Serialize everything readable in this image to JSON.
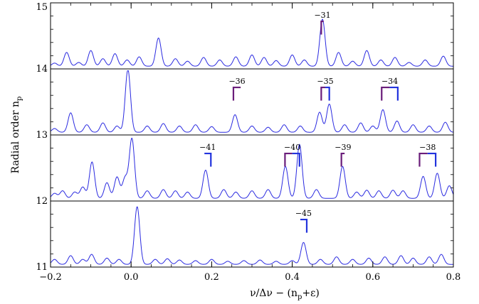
{
  "chart_data": {
    "type": "line",
    "xlabel": "ν/Δν − (n",
    "xlabel_sub": "p",
    "xlabel_tail": "+ε)",
    "ylabel": "Radial order n",
    "ylabel_sub": "p",
    "xlim": [
      -0.2,
      0.8
    ],
    "x_ticks": [
      -0.2,
      0.0,
      0.2,
      0.4,
      0.6,
      0.8
    ],
    "x_tick_labels": [
      "−0.2",
      "0.0",
      "0.2",
      "0.4",
      "0.6",
      "0.8"
    ],
    "line_color": "#2a2ae0",
    "colors": {
      "purple": "#6a1d7a",
      "blue": "#2233dd"
    },
    "panels": [
      {
        "order": 14,
        "label_bottom": "14",
        "label_top": "15",
        "peaks": [
          {
            "x": -0.19,
            "h": 0.05
          },
          {
            "x": -0.16,
            "h": 0.22
          },
          {
            "x": -0.13,
            "h": 0.06
          },
          {
            "x": -0.1,
            "h": 0.25
          },
          {
            "x": -0.07,
            "h": 0.12
          },
          {
            "x": -0.04,
            "h": 0.2
          },
          {
            "x": -0.01,
            "h": 0.1
          },
          {
            "x": 0.02,
            "h": 0.15
          },
          {
            "x": 0.068,
            "h": 0.45
          },
          {
            "x": 0.11,
            "h": 0.12
          },
          {
            "x": 0.14,
            "h": 0.08
          },
          {
            "x": 0.18,
            "h": 0.14
          },
          {
            "x": 0.22,
            "h": 0.1
          },
          {
            "x": 0.26,
            "h": 0.15
          },
          {
            "x": 0.3,
            "h": 0.18
          },
          {
            "x": 0.33,
            "h": 0.14
          },
          {
            "x": 0.36,
            "h": 0.09
          },
          {
            "x": 0.4,
            "h": 0.18
          },
          {
            "x": 0.43,
            "h": 0.1
          },
          {
            "x": 0.475,
            "h": 0.75
          },
          {
            "x": 0.515,
            "h": 0.22
          },
          {
            "x": 0.55,
            "h": 0.08
          },
          {
            "x": 0.585,
            "h": 0.25
          },
          {
            "x": 0.62,
            "h": 0.1
          },
          {
            "x": 0.655,
            "h": 0.14
          },
          {
            "x": 0.69,
            "h": 0.06
          },
          {
            "x": 0.73,
            "h": 0.1
          },
          {
            "x": 0.775,
            "h": 0.16
          }
        ],
        "markers": [
          {
            "label": "−31",
            "x1": 0.472,
            "x2": 0.478,
            "color": "purple",
            "height": 0.2
          }
        ]
      },
      {
        "order": 13,
        "label_bottom": "13",
        "peaks": [
          {
            "x": -0.19,
            "h": 0.06
          },
          {
            "x": -0.15,
            "h": 0.31
          },
          {
            "x": -0.11,
            "h": 0.12
          },
          {
            "x": -0.07,
            "h": 0.15
          },
          {
            "x": -0.035,
            "h": 0.1
          },
          {
            "x": -0.008,
            "h": 1.0
          },
          {
            "x": 0.04,
            "h": 0.1
          },
          {
            "x": 0.08,
            "h": 0.14
          },
          {
            "x": 0.12,
            "h": 0.1
          },
          {
            "x": 0.16,
            "h": 0.12
          },
          {
            "x": 0.2,
            "h": 0.09
          },
          {
            "x": 0.258,
            "h": 0.28
          },
          {
            "x": 0.3,
            "h": 0.1
          },
          {
            "x": 0.34,
            "h": 0.08
          },
          {
            "x": 0.38,
            "h": 0.12
          },
          {
            "x": 0.42,
            "h": 0.1
          },
          {
            "x": 0.468,
            "h": 0.32
          },
          {
            "x": 0.492,
            "h": 0.45
          },
          {
            "x": 0.53,
            "h": 0.12
          },
          {
            "x": 0.57,
            "h": 0.15
          },
          {
            "x": 0.6,
            "h": 0.1
          },
          {
            "x": 0.625,
            "h": 0.36
          },
          {
            "x": 0.66,
            "h": 0.18
          },
          {
            "x": 0.7,
            "h": 0.12
          },
          {
            "x": 0.74,
            "h": 0.1
          },
          {
            "x": 0.78,
            "h": 0.16
          }
        ],
        "markers": [
          {
            "label": "−36",
            "x1": 0.254,
            "x2": 0.272,
            "color": "purple",
            "height": 0.2
          },
          {
            "label": "−35",
            "x1": 0.472,
            "x2": 0.492,
            "color": "mixed",
            "height": 0.2
          },
          {
            "label": "−34",
            "x1": 0.622,
            "x2": 0.662,
            "color": "mixed",
            "height": 0.2
          }
        ]
      },
      {
        "order": 12,
        "label_bottom": "12",
        "peaks": [
          {
            "x": -0.19,
            "h": 0.08
          },
          {
            "x": -0.17,
            "h": 0.12
          },
          {
            "x": -0.14,
            "h": 0.1
          },
          {
            "x": -0.12,
            "h": 0.18
          },
          {
            "x": -0.097,
            "h": 0.58
          },
          {
            "x": -0.06,
            "h": 0.25
          },
          {
            "x": -0.035,
            "h": 0.34
          },
          {
            "x": -0.015,
            "h": 0.32
          },
          {
            "x": 0.002,
            "h": 0.95
          },
          {
            "x": 0.04,
            "h": 0.12
          },
          {
            "x": 0.08,
            "h": 0.14
          },
          {
            "x": 0.11,
            "h": 0.12
          },
          {
            "x": 0.14,
            "h": 0.1
          },
          {
            "x": 0.185,
            "h": 0.45
          },
          {
            "x": 0.23,
            "h": 0.14
          },
          {
            "x": 0.26,
            "h": 0.1
          },
          {
            "x": 0.3,
            "h": 0.12
          },
          {
            "x": 0.34,
            "h": 0.14
          },
          {
            "x": 0.383,
            "h": 0.51
          },
          {
            "x": 0.418,
            "h": 0.86
          },
          {
            "x": 0.46,
            "h": 0.14
          },
          {
            "x": 0.525,
            "h": 0.51
          },
          {
            "x": 0.56,
            "h": 0.1
          },
          {
            "x": 0.585,
            "h": 0.13
          },
          {
            "x": 0.615,
            "h": 0.12
          },
          {
            "x": 0.65,
            "h": 0.13
          },
          {
            "x": 0.675,
            "h": 0.12
          },
          {
            "x": 0.725,
            "h": 0.35
          },
          {
            "x": 0.76,
            "h": 0.4
          },
          {
            "x": 0.79,
            "h": 0.2
          }
        ],
        "markers": [
          {
            "label": "−41",
            "x1": 0.182,
            "x2": 0.198,
            "color": "blue",
            "height": 0.2
          },
          {
            "label": "−40",
            "x1": 0.382,
            "x2": 0.418,
            "color": "mixed",
            "height": 0.2
          },
          {
            "label": "−39",
            "x1": 0.522,
            "x2": 0.53,
            "color": "purple",
            "height": 0.2
          },
          {
            "label": "−38",
            "x1": 0.716,
            "x2": 0.756,
            "color": "mixed",
            "height": 0.2
          }
        ]
      },
      {
        "order": 11,
        "label_bottom": "11",
        "peaks": [
          {
            "x": -0.19,
            "h": 0.08
          },
          {
            "x": -0.15,
            "h": 0.14
          },
          {
            "x": -0.12,
            "h": 0.08
          },
          {
            "x": -0.098,
            "h": 0.16
          },
          {
            "x": -0.06,
            "h": 0.1
          },
          {
            "x": -0.03,
            "h": 0.08
          },
          {
            "x": 0.015,
            "h": 0.92
          },
          {
            "x": 0.06,
            "h": 0.08
          },
          {
            "x": 0.09,
            "h": 0.09
          },
          {
            "x": 0.12,
            "h": 0.07
          },
          {
            "x": 0.16,
            "h": 0.06
          },
          {
            "x": 0.2,
            "h": 0.08
          },
          {
            "x": 0.24,
            "h": 0.05
          },
          {
            "x": 0.28,
            "h": 0.06
          },
          {
            "x": 0.32,
            "h": 0.07
          },
          {
            "x": 0.36,
            "h": 0.05
          },
          {
            "x": 0.4,
            "h": 0.06
          },
          {
            "x": 0.428,
            "h": 0.35
          },
          {
            "x": 0.47,
            "h": 0.08
          },
          {
            "x": 0.51,
            "h": 0.12
          },
          {
            "x": 0.55,
            "h": 0.08
          },
          {
            "x": 0.59,
            "h": 0.1
          },
          {
            "x": 0.63,
            "h": 0.12
          },
          {
            "x": 0.67,
            "h": 0.14
          },
          {
            "x": 0.7,
            "h": 0.1
          },
          {
            "x": 0.74,
            "h": 0.12
          },
          {
            "x": 0.77,
            "h": 0.16
          }
        ],
        "markers": [
          {
            "label": "−45",
            "x1": 0.42,
            "x2": 0.436,
            "color": "blue",
            "height": 0.2
          }
        ]
      }
    ]
  }
}
